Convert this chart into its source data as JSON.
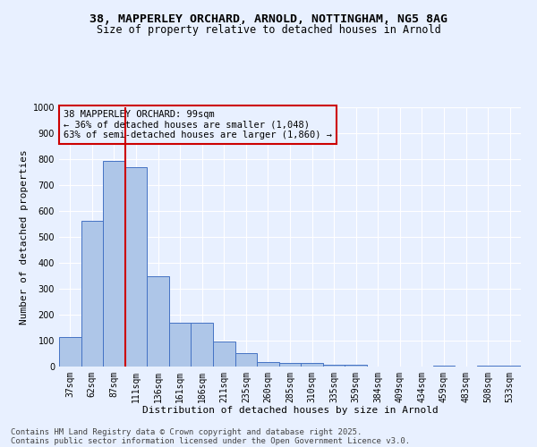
{
  "title_line1": "38, MAPPERLEY ORCHARD, ARNOLD, NOTTINGHAM, NG5 8AG",
  "title_line2": "Size of property relative to detached houses in Arnold",
  "xlabel": "Distribution of detached houses by size in Arnold",
  "ylabel": "Number of detached properties",
  "categories": [
    "37sqm",
    "62sqm",
    "87sqm",
    "111sqm",
    "136sqm",
    "161sqm",
    "186sqm",
    "211sqm",
    "235sqm",
    "260sqm",
    "285sqm",
    "310sqm",
    "335sqm",
    "359sqm",
    "384sqm",
    "409sqm",
    "434sqm",
    "459sqm",
    "483sqm",
    "508sqm",
    "533sqm"
  ],
  "values": [
    113,
    563,
    793,
    770,
    350,
    168,
    168,
    97,
    52,
    17,
    13,
    13,
    8,
    8,
    0,
    0,
    0,
    5,
    0,
    5,
    5
  ],
  "bar_color": "#aec6e8",
  "bar_edge_color": "#4472c4",
  "vline_color": "#cc0000",
  "annotation_text": "38 MAPPERLEY ORCHARD: 99sqm\n← 36% of detached houses are smaller (1,048)\n63% of semi-detached houses are larger (1,860) →",
  "annotation_box_color": "#cc0000",
  "ylim": [
    0,
    1000
  ],
  "yticks": [
    0,
    100,
    200,
    300,
    400,
    500,
    600,
    700,
    800,
    900,
    1000
  ],
  "background_color": "#e8f0ff",
  "grid_color": "#ffffff",
  "footer_line1": "Contains HM Land Registry data © Crown copyright and database right 2025.",
  "footer_line2": "Contains public sector information licensed under the Open Government Licence v3.0.",
  "title_fontsize": 9.5,
  "subtitle_fontsize": 8.5,
  "axis_label_fontsize": 8,
  "tick_fontsize": 7,
  "annotation_fontsize": 7.5,
  "footer_fontsize": 6.5
}
